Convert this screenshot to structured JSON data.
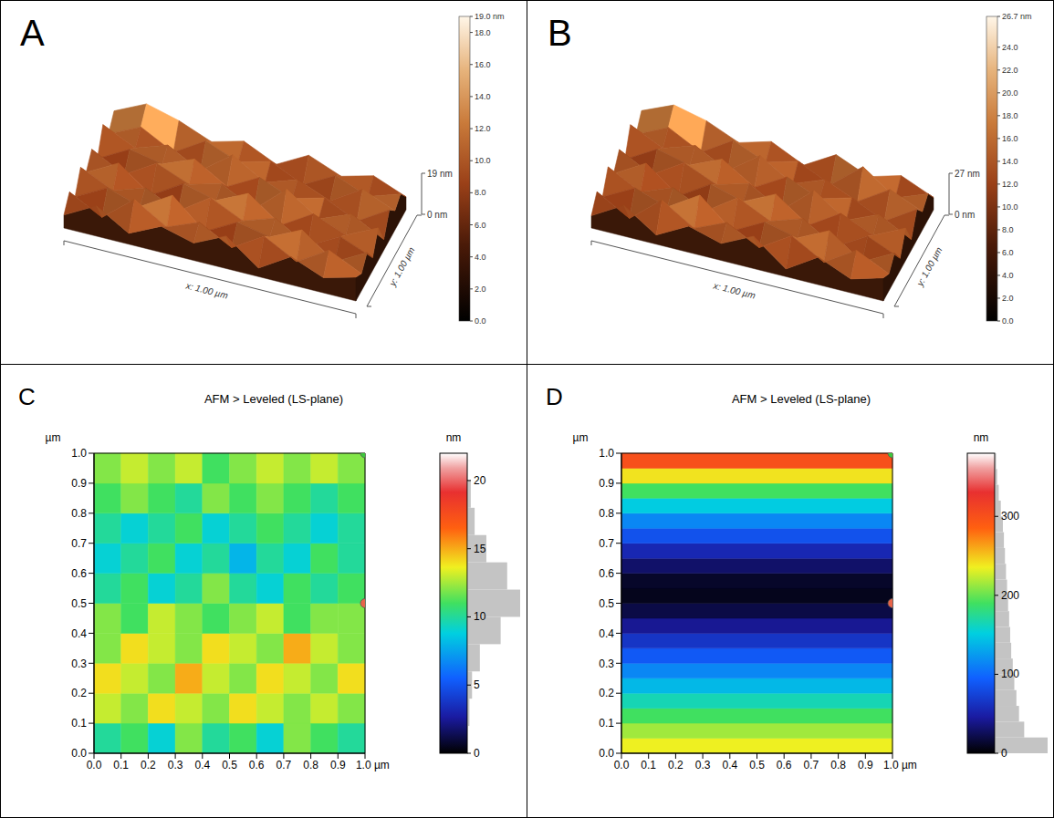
{
  "chart_data": [
    {
      "panel": "A",
      "type": "surface3d",
      "x_label": "x: 1.00 µm",
      "y_label": "y: 1.00 µm",
      "zlim": [
        0,
        19
      ],
      "zticks": [
        {
          "value": 0,
          "label": "0 nm"
        },
        {
          "value": 19,
          "label": "19 nm"
        }
      ],
      "heights": [
        [
          6,
          14,
          5,
          12,
          8,
          15,
          4,
          13,
          7,
          11
        ],
        [
          12,
          4,
          16,
          7,
          13,
          5,
          14,
          6,
          15,
          8
        ],
        [
          5,
          13,
          8,
          17,
          4,
          12,
          9,
          16,
          5,
          13
        ],
        [
          14,
          7,
          12,
          5,
          15,
          8,
          13,
          4,
          12,
          6
        ],
        [
          7,
          15,
          4,
          13,
          9,
          16,
          5,
          14,
          8,
          15
        ],
        [
          13,
          5,
          14,
          8,
          12,
          4,
          17,
          7,
          13,
          5
        ],
        [
          4,
          12,
          9,
          15,
          6,
          14,
          8,
          12,
          5,
          14
        ],
        [
          15,
          8,
          13,
          5,
          16,
          7,
          12,
          6,
          15,
          9
        ],
        [
          6,
          13,
          5,
          14,
          8,
          12,
          5,
          13,
          7,
          12
        ],
        [
          12,
          19,
          15,
          9,
          13,
          6,
          14,
          8,
          12,
          6
        ]
      ],
      "colorbar": {
        "range": [
          0,
          19
        ],
        "ticks": [
          {
            "value": 0,
            "label": "0.0"
          },
          {
            "value": 2,
            "label": "2.0"
          },
          {
            "value": 4,
            "label": "4.0"
          },
          {
            "value": 6,
            "label": "6.0"
          },
          {
            "value": 8,
            "label": "8.0"
          },
          {
            "value": 10,
            "label": "10.0"
          },
          {
            "value": 12,
            "label": "12.0"
          },
          {
            "value": 14,
            "label": "14.0"
          },
          {
            "value": 16,
            "label": "16.0"
          },
          {
            "value": 18,
            "label": "18.0"
          },
          {
            "value": 19,
            "label": "19.0 nm"
          }
        ]
      }
    },
    {
      "panel": "B",
      "type": "surface3d",
      "x_label": "x: 1.00 µm",
      "y_label": "y: 1.00 µm",
      "zlim": [
        0,
        26.7
      ],
      "zticks": [
        {
          "value": 0,
          "label": "0 nm"
        },
        {
          "value": 26.7,
          "label": "27 nm"
        }
      ],
      "heights": [
        [
          8,
          20,
          6,
          17,
          11,
          21,
          5,
          18,
          9,
          15
        ],
        [
          17,
          5,
          22,
          9,
          18,
          7,
          20,
          8,
          21,
          11
        ],
        [
          7,
          18,
          11,
          24,
          6,
          17,
          12,
          22,
          7,
          18
        ],
        [
          20,
          9,
          17,
          7,
          21,
          11,
          18,
          5,
          17,
          8
        ],
        [
          9,
          21,
          5,
          18,
          12,
          22,
          7,
          20,
          11,
          21
        ],
        [
          18,
          7,
          20,
          11,
          17,
          5,
          23,
          9,
          18,
          7
        ],
        [
          5,
          17,
          12,
          21,
          8,
          20,
          11,
          17,
          7,
          20
        ],
        [
          21,
          11,
          18,
          7,
          22,
          9,
          17,
          8,
          21,
          12
        ],
        [
          8,
          18,
          7,
          20,
          11,
          17,
          7,
          24,
          9,
          17
        ],
        [
          17,
          26,
          21,
          12,
          18,
          8,
          20,
          11,
          17,
          8
        ]
      ],
      "colorbar": {
        "range": [
          0,
          26.7
        ],
        "ticks": [
          {
            "value": 0,
            "label": "0.0"
          },
          {
            "value": 2,
            "label": "2.0"
          },
          {
            "value": 4,
            "label": "4.0"
          },
          {
            "value": 6,
            "label": "6.0"
          },
          {
            "value": 8,
            "label": "8.0"
          },
          {
            "value": 10,
            "label": "10.0"
          },
          {
            "value": 12,
            "label": "12.0"
          },
          {
            "value": 14,
            "label": "14.0"
          },
          {
            "value": 16,
            "label": "16.0"
          },
          {
            "value": 18,
            "label": "18.0"
          },
          {
            "value": 20,
            "label": "20.0"
          },
          {
            "value": 22,
            "label": "22.0"
          },
          {
            "value": 24,
            "label": "24.0"
          },
          {
            "value": 26.7,
            "label": "26.7 nm"
          }
        ]
      }
    },
    {
      "panel": "C",
      "type": "heatmap",
      "title": "AFM > Leveled (LS-plane)",
      "y_label": "µm",
      "xlim": [
        0,
        1
      ],
      "ylim": [
        0,
        1
      ],
      "xticks": [
        {
          "value": 0,
          "label": "0.0"
        },
        0.1,
        0.2,
        0.3,
        0.4,
        0.5,
        0.6,
        0.7,
        0.8,
        0.9,
        {
          "value": 1,
          "label": "1.0 µm"
        }
      ],
      "yticks": [
        {
          "value": 0,
          "label": "0.0"
        },
        0.1,
        0.2,
        0.3,
        0.4,
        0.5,
        0.6,
        0.7,
        0.8,
        0.9,
        {
          "value": 1,
          "label": "1.0"
        }
      ],
      "x_edges": [
        0,
        0.1,
        0.2,
        0.3,
        0.4,
        0.5,
        0.6,
        0.7,
        0.8,
        0.9,
        1
      ],
      "y_edges": [
        0,
        0.1,
        0.2,
        0.3,
        0.4,
        0.5,
        0.6,
        0.7,
        0.8,
        0.9,
        1
      ],
      "cells": [
        [
          10,
          11,
          9,
          12,
          10,
          11,
          9,
          12,
          11,
          10
        ],
        [
          13,
          12,
          14,
          13,
          12,
          14,
          13,
          12,
          13,
          12
        ],
        [
          14,
          13,
          12,
          15,
          13,
          12,
          14,
          13,
          12,
          14
        ],
        [
          12,
          14,
          13,
          12,
          14,
          13,
          12,
          15,
          13,
          12
        ],
        [
          12,
          11,
          13,
          12,
          11,
          12,
          13,
          11,
          12,
          12
        ],
        [
          10,
          11,
          9,
          10,
          12,
          10,
          9,
          11,
          10,
          11
        ],
        [
          9,
          10,
          11,
          9,
          10,
          8,
          10,
          9,
          11,
          10
        ],
        [
          10,
          9,
          10,
          11,
          9,
          10,
          11,
          10,
          9,
          10
        ],
        [
          11,
          12,
          11,
          10,
          12,
          11,
          12,
          11,
          10,
          11
        ],
        [
          12,
          13,
          12,
          13,
          11,
          12,
          13,
          12,
          13,
          12
        ]
      ],
      "colorbar": {
        "label": "nm",
        "range": [
          0,
          22
        ],
        "ticks": [
          0,
          5,
          10,
          15,
          20
        ]
      },
      "histogram": {
        "bins": [
          0,
          2,
          4,
          6,
          8,
          10,
          12,
          14,
          16,
          18,
          20,
          22
        ],
        "counts": [
          0,
          1,
          3,
          9,
          25,
          40,
          30,
          14,
          5,
          2,
          0
        ]
      },
      "markers": [
        {
          "x": 1,
          "y": 1,
          "color": "#3cc83c"
        },
        {
          "x": 1,
          "y": 0.5,
          "color": "#e8644a"
        }
      ]
    },
    {
      "panel": "D",
      "type": "heatmap",
      "title": "AFM > Leveled (LS-plane)",
      "y_label": "µm",
      "xlim": [
        0,
        1
      ],
      "ylim": [
        0,
        1
      ],
      "xticks": [
        {
          "value": 0,
          "label": "0.0"
        },
        0.1,
        0.2,
        0.3,
        0.4,
        0.5,
        0.6,
        0.7,
        0.8,
        0.9,
        {
          "value": 1,
          "label": "1.0 µm"
        }
      ],
      "yticks": [
        {
          "value": 0,
          "label": "0.0"
        },
        0.1,
        0.2,
        0.3,
        0.4,
        0.5,
        0.6,
        0.7,
        0.8,
        0.9,
        {
          "value": 1,
          "label": "1.0"
        }
      ],
      "x_edges": [
        0,
        1
      ],
      "y_edges": [
        0,
        0.05,
        0.1,
        0.15,
        0.2,
        0.25,
        0.3,
        0.35,
        0.4,
        0.45,
        0.5,
        0.55,
        0.6,
        0.65,
        0.7,
        0.75,
        0.8,
        0.85,
        0.9,
        0.95,
        1
      ],
      "cells": [
        [
          235
        ],
        [
          215
        ],
        [
          190
        ],
        [
          165
        ],
        [
          140
        ],
        [
          115
        ],
        [
          90
        ],
        [
          65
        ],
        [
          42
        ],
        [
          20
        ],
        [
          8
        ],
        [
          12
        ],
        [
          30
        ],
        [
          55
        ],
        [
          85
        ],
        [
          115
        ],
        [
          150
        ],
        [
          190
        ],
        [
          240
        ],
        [
          300
        ]
      ],
      "colorbar": {
        "label": "nm",
        "range": [
          0,
          380
        ],
        "ticks": [
          0,
          100,
          200,
          300
        ]
      },
      "histogram": {
        "bins": [
          0,
          20,
          40,
          60,
          80,
          100,
          120,
          140,
          160,
          180,
          200,
          220,
          240,
          260,
          280,
          300,
          320,
          340,
          360,
          380
        ],
        "counts": [
          100,
          55,
          45,
          40,
          36,
          33,
          30,
          28,
          26,
          24,
          22,
          20,
          18,
          16,
          14,
          10,
          6,
          3,
          1
        ]
      },
      "markers": [
        {
          "x": 1,
          "y": 1,
          "color": "#3cc83c"
        },
        {
          "x": 1,
          "y": 0.5,
          "color": "#e8644a"
        }
      ]
    }
  ]
}
